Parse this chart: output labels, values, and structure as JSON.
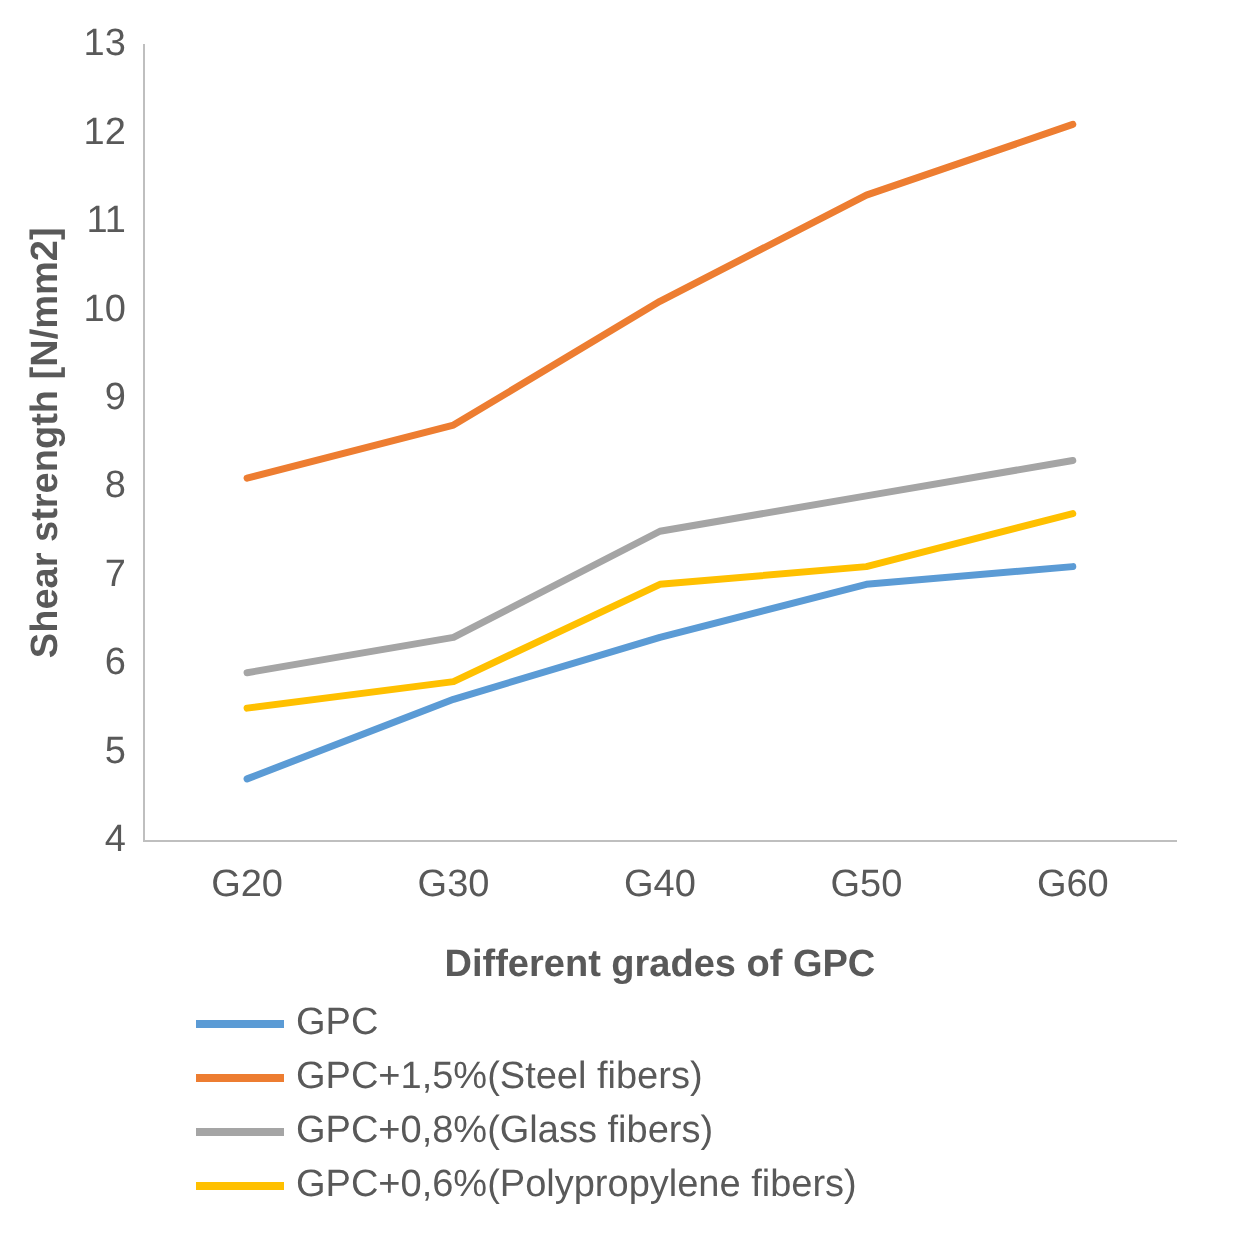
{
  "chart_data": {
    "type": "line",
    "xlabel": "Different grades of GPC",
    "ylabel": "Shear strength [N/mm2]",
    "categories": [
      "G20",
      "G30",
      "G40",
      "G50",
      "G60"
    ],
    "series": [
      {
        "name": "GPC",
        "color": "#5b9bd5",
        "values": [
          4.7,
          5.6,
          6.3,
          6.9,
          7.1
        ]
      },
      {
        "name": "GPC+1,5%(Steel fibers)",
        "color": "#ed7d31",
        "values": [
          8.1,
          8.7,
          10.1,
          11.3,
          12.1
        ]
      },
      {
        "name": "GPC+0,8%(Glass fibers)",
        "color": "#a5a5a5",
        "values": [
          5.9,
          6.3,
          7.5,
          7.9,
          8.3
        ]
      },
      {
        "name": "GPC+0,6%(Polypropylene fibers)",
        "color": "#ffc000",
        "values": [
          5.5,
          5.8,
          6.9,
          7.1,
          7.7
        ]
      }
    ],
    "ylim": [
      4,
      13
    ],
    "yticks": [
      4,
      5,
      6,
      7,
      8,
      9,
      10,
      11,
      12,
      13
    ],
    "grid": false,
    "legend": "bottom",
    "marker": "none",
    "line_style": "solid"
  }
}
